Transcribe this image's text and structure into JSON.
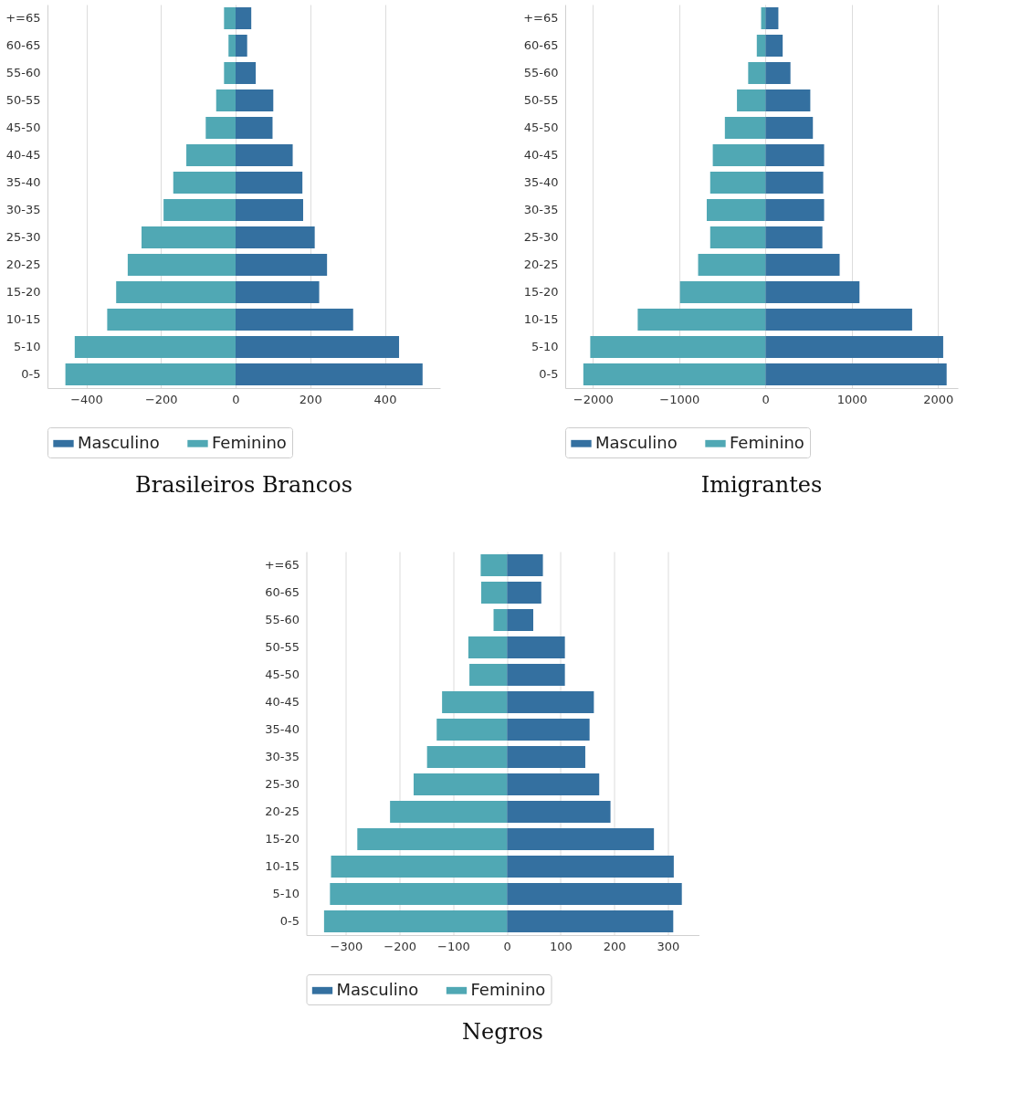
{
  "chart_data": [
    {
      "type": "bar",
      "orientation": "horizontal",
      "stacked": true,
      "title": "Brasileiros Brancos",
      "categories": [
        "+=65",
        "60-65",
        "55-60",
        "50-55",
        "45-50",
        "40-45",
        "35-40",
        "30-35",
        "25-30",
        "20-25",
        "15-20",
        "10-15",
        "5-10",
        "0-5"
      ],
      "series": [
        {
          "name": "Masculino",
          "color": "#3470a0",
          "values": [
            42,
            31,
            54,
            101,
            99,
            153,
            179,
            181,
            212,
            245,
            224,
            315,
            438,
            501
          ]
        },
        {
          "name": "Feminino",
          "color": "#50a8b4",
          "values": [
            -31,
            -19,
            -31,
            -52,
            -80,
            -132,
            -167,
            -193,
            -252,
            -289,
            -320,
            -344,
            -431,
            -456
          ]
        }
      ],
      "xlim": [
        -504,
        548
      ],
      "xticks": [
        -400,
        -200,
        0,
        200,
        400
      ],
      "grid": "x",
      "legend": "bottom"
    },
    {
      "type": "bar",
      "orientation": "horizontal",
      "stacked": true,
      "title": "Imigrantes",
      "categories": [
        "+=65",
        "60-65",
        "55-60",
        "50-55",
        "45-50",
        "40-45",
        "35-40",
        "30-35",
        "25-30",
        "20-25",
        "15-20",
        "10-15",
        "5-10",
        "0-5"
      ],
      "series": [
        {
          "name": "Masculino",
          "color": "#3470a0",
          "values": [
            150,
            200,
            290,
            520,
            550,
            680,
            670,
            680,
            660,
            860,
            1090,
            1700,
            2060,
            2100
          ]
        },
        {
          "name": "Feminino",
          "color": "#50a8b4",
          "values": [
            -50,
            -100,
            -200,
            -330,
            -470,
            -610,
            -640,
            -680,
            -640,
            -780,
            -990,
            -1480,
            -2030,
            -2110
          ]
        }
      ],
      "xlim": [
        -2320,
        2230
      ],
      "xticks": [
        -2000,
        -1000,
        0,
        1000,
        2000
      ],
      "grid": "x",
      "legend": "bottom"
    },
    {
      "type": "bar",
      "orientation": "horizontal",
      "stacked": true,
      "title": "Negros",
      "categories": [
        "+=65",
        "60-65",
        "55-60",
        "50-55",
        "45-50",
        "40-45",
        "35-40",
        "30-35",
        "25-30",
        "20-25",
        "15-20",
        "10-15",
        "5-10",
        "0-5"
      ],
      "series": [
        {
          "name": "Masculino",
          "color": "#3470a0",
          "values": [
            67,
            64,
            49,
            108,
            108,
            162,
            154,
            146,
            172,
            193,
            274,
            311,
            326,
            310
          ]
        },
        {
          "name": "Feminino",
          "color": "#50a8b4",
          "values": [
            -49,
            -48,
            -25,
            -72,
            -70,
            -121,
            -131,
            -149,
            -174,
            -218,
            -279,
            -328,
            -330,
            -341
          ]
        }
      ],
      "xlim": [
        -374,
        358
      ],
      "xticks": [
        -300,
        -200,
        -100,
        0,
        100,
        200,
        300
      ],
      "grid": "x",
      "legend": "bottom"
    }
  ]
}
